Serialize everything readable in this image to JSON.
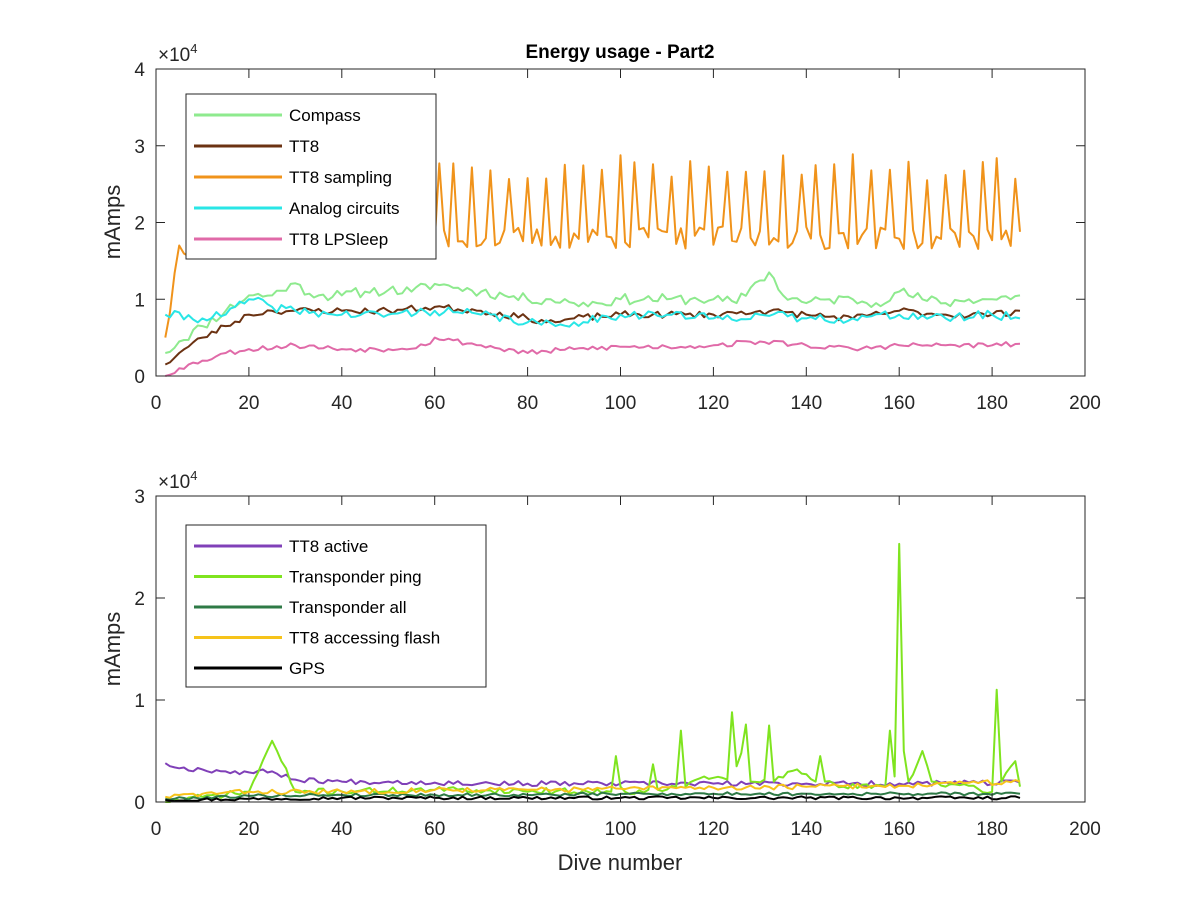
{
  "chart_data": [
    {
      "type": "line",
      "title": "Energy usage - Part2",
      "xlabel": "",
      "ylabel": "mAmps",
      "xlim": [
        0,
        200
      ],
      "ylim": [
        0,
        40000
      ],
      "x_ticks": [
        "0",
        "20",
        "40",
        "60",
        "80",
        "100",
        "120",
        "140",
        "160",
        "180",
        "200"
      ],
      "y_ticks": [
        "0",
        "1",
        "2",
        "3",
        "4"
      ],
      "y_exponent": "×10",
      "y_exponent_power": "4",
      "legend_position": "top-left",
      "grid": false,
      "series": [
        {
          "name": "Compass",
          "color": "#8eea8e",
          "x_start": 2,
          "x_end": 186,
          "key_x": [
            2,
            5,
            10,
            15,
            20,
            25,
            29,
            35,
            40,
            45,
            50,
            55,
            60,
            65,
            70,
            75,
            80,
            85,
            90,
            95,
            100,
            105,
            110,
            115,
            120,
            125,
            128,
            132,
            135,
            140,
            145,
            150,
            155,
            160,
            165,
            170,
            175,
            180,
            186
          ],
          "key_y": [
            3000,
            4500,
            6500,
            8500,
            10500,
            10500,
            12000,
            10500,
            10500,
            11000,
            11200,
            11000,
            12000,
            11500,
            11000,
            10500,
            10000,
            10000,
            9500,
            9500,
            10000,
            10000,
            10000,
            10000,
            10000,
            9500,
            11500,
            13500,
            10500,
            9500,
            10000,
            10000,
            9500,
            11000,
            10000,
            9500,
            10000,
            10000,
            10500
          ],
          "noise": 700,
          "seed": 11
        },
        {
          "name": "TT8",
          "color": "#6b3212",
          "x_start": 2,
          "x_end": 186,
          "key_x": [
            2,
            5,
            10,
            15,
            20,
            25,
            30,
            40,
            50,
            60,
            70,
            80,
            86,
            90,
            100,
            110,
            120,
            130,
            140,
            150,
            160,
            170,
            180,
            186
          ],
          "key_y": [
            1500,
            3000,
            5000,
            6500,
            8000,
            8500,
            8500,
            8500,
            8500,
            9000,
            8500,
            7500,
            7000,
            7500,
            8000,
            8000,
            8000,
            8500,
            8000,
            7500,
            8500,
            8000,
            8000,
            8500
          ],
          "noise": 450,
          "seed": 23
        },
        {
          "name": "TT8 sampling",
          "color": "#f0931b",
          "x_start": 2,
          "x_end": 186,
          "key_x": [
            2,
            5,
            10,
            15,
            20,
            25,
            30,
            186
          ],
          "key_y": [
            5000,
            17000,
            17000,
            19000,
            21000,
            22000,
            22000,
            22000
          ],
          "oscillate_from": 25,
          "osc_period": 3.9,
          "osc_low": 16500,
          "osc_high": 29000,
          "noise": 1500,
          "seed": 37
        },
        {
          "name": "Analog circuits",
          "color": "#29e6e6",
          "x_start": 2,
          "x_end": 186,
          "key_x": [
            2,
            10,
            15,
            20,
            25,
            30,
            40,
            50,
            60,
            70,
            80,
            86,
            90,
            100,
            110,
            120,
            130,
            140,
            150,
            160,
            170,
            180,
            186
          ],
          "key_y": [
            8000,
            7500,
            8000,
            10000,
            9000,
            8500,
            8000,
            8000,
            8500,
            8000,
            7000,
            6500,
            7000,
            8000,
            8000,
            7500,
            8000,
            7500,
            7500,
            8000,
            7500,
            8000,
            7500
          ],
          "noise": 600,
          "seed": 41
        },
        {
          "name": "TT8 LPSleep",
          "color": "#e06aa8",
          "x_start": 2,
          "x_end": 186,
          "key_x": [
            2,
            5,
            10,
            15,
            20,
            30,
            40,
            50,
            58,
            60,
            70,
            80,
            90,
            100,
            110,
            120,
            130,
            140,
            150,
            160,
            170,
            180,
            186
          ],
          "key_y": [
            0,
            1000,
            2000,
            3000,
            3500,
            4000,
            3500,
            3500,
            4000,
            5000,
            4000,
            3000,
            3500,
            3800,
            3800,
            4000,
            4500,
            4000,
            3500,
            4000,
            4000,
            4000,
            4200
          ],
          "noise": 350,
          "seed": 53
        }
      ]
    },
    {
      "type": "line",
      "title": "",
      "xlabel": "Dive number",
      "ylabel": "mAmps",
      "xlim": [
        0,
        200
      ],
      "ylim": [
        0,
        30000
      ],
      "x_ticks": [
        "0",
        "20",
        "40",
        "60",
        "80",
        "100",
        "120",
        "140",
        "160",
        "180",
        "200"
      ],
      "y_ticks": [
        "0",
        "1",
        "2",
        "3"
      ],
      "y_exponent": "×10",
      "y_exponent_power": "4",
      "legend_position": "top-left",
      "grid": false,
      "series": [
        {
          "name": "TT8 active",
          "color": "#8040b8",
          "x_start": 2,
          "x_end": 186,
          "key_x": [
            2,
            5,
            10,
            15,
            20,
            25,
            30,
            40,
            50,
            60,
            80,
            100,
            120,
            140,
            160,
            186
          ],
          "key_y": [
            3800,
            3300,
            3200,
            3000,
            2900,
            3000,
            2200,
            2000,
            2000,
            1900,
            1800,
            1800,
            1800,
            1800,
            1800,
            1900
          ],
          "noise": 250,
          "seed": 67
        },
        {
          "name": "Transponder ping",
          "color": "#7fe41f",
          "x_start": 2,
          "x_end": 186,
          "key_x": [
            2,
            10,
            20,
            25,
            30,
            60,
            98,
            99,
            100,
            101,
            106,
            107,
            108,
            112,
            113,
            114,
            118,
            123,
            124,
            125,
            126,
            127,
            128,
            131,
            132,
            133,
            138,
            142,
            143,
            144,
            148,
            157,
            158,
            159,
            160,
            161,
            162,
            165,
            167,
            180,
            181,
            182,
            185,
            186
          ],
          "key_y": [
            0,
            500,
            1000,
            6000,
            1000,
            1200,
            1000,
            4500,
            1500,
            1000,
            1200,
            3700,
            1200,
            1500,
            7000,
            1500,
            2500,
            2200,
            8800,
            3500,
            4800,
            7600,
            2000,
            2200,
            7500,
            2000,
            3200,
            2000,
            4500,
            2000,
            1500,
            1500,
            7000,
            2500,
            25300,
            5000,
            2000,
            5000,
            2000,
            1000,
            11000,
            2000,
            4000,
            1500
          ],
          "noise": 300,
          "seed": 71
        },
        {
          "name": "Transponder all",
          "color": "#2e7a46",
          "x_start": 2,
          "x_end": 186,
          "key_x": [
            2,
            20,
            40,
            60,
            80,
            100,
            120,
            140,
            160,
            186
          ],
          "key_y": [
            300,
            600,
            700,
            700,
            700,
            800,
            800,
            800,
            800,
            800
          ],
          "noise": 150,
          "seed": 79
        },
        {
          "name": "TT8 accessing flash",
          "color": "#f6c31a",
          "x_start": 2,
          "x_end": 186,
          "key_x": [
            2,
            10,
            20,
            40,
            60,
            80,
            100,
            120,
            140,
            160,
            186
          ],
          "key_y": [
            500,
            800,
            1000,
            1000,
            1200,
            1200,
            1300,
            1400,
            1500,
            1600,
            2000
          ],
          "noise": 250,
          "seed": 83
        },
        {
          "name": "GPS",
          "color": "#000000",
          "x_start": 2,
          "x_end": 186,
          "key_x": [
            2,
            20,
            40,
            60,
            80,
            100,
            120,
            140,
            160,
            186
          ],
          "key_y": [
            200,
            300,
            400,
            400,
            400,
            400,
            400,
            400,
            400,
            400
          ],
          "noise": 150,
          "seed": 97
        }
      ]
    }
  ]
}
